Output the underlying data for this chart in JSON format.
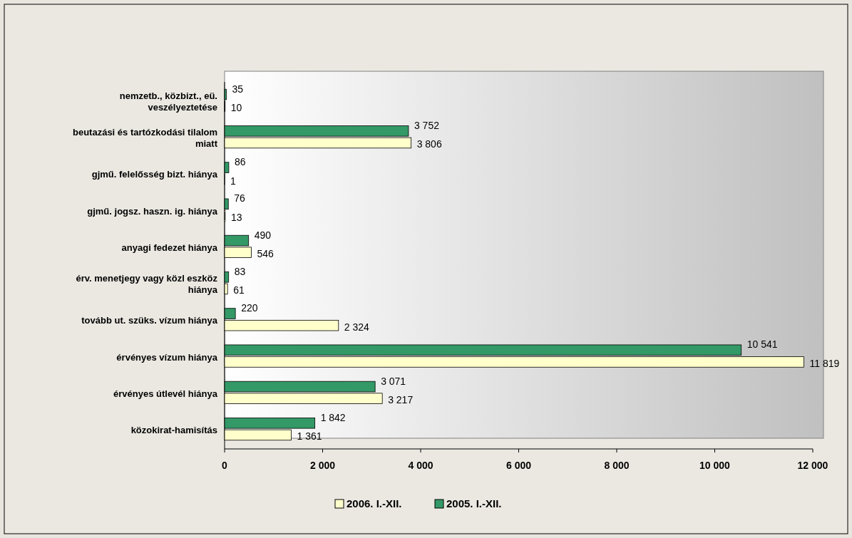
{
  "chart_data": {
    "type": "bar",
    "orientation": "horizontal",
    "categories": [
      "nemzetb., közbizt., eü. veszélyeztetése",
      "beutazási és tartózkodási tilalom miatt",
      "gjmű. felelősség bizt. hiánya",
      "gjmű. jogsz. haszn. ig. hiánya",
      "anyagi fedezet hiánya",
      "érv. menetjegy vagy közl eszköz hiánya",
      "tovább ut. szüks. vízum hiánya",
      "érvényes vízum hiánya",
      "érvényes útlevél hiánya",
      "közokirat-hamisítás"
    ],
    "series": [
      {
        "name": "2006. I.-XII.",
        "color": "#ffffcc",
        "values": [
          10,
          3806,
          1,
          13,
          546,
          61,
          2324,
          11819,
          3217,
          1361
        ],
        "value_labels": [
          "10",
          "3 806",
          "1",
          "13",
          "546",
          "61",
          "2 324",
          "11 819",
          "3 217",
          "1 361"
        ]
      },
      {
        "name": "2005. I.-XII.",
        "color": "#339966",
        "values": [
          35,
          3752,
          86,
          76,
          490,
          83,
          220,
          10541,
          3071,
          1842
        ],
        "value_labels": [
          "35",
          "3 752",
          "86",
          "76",
          "490",
          "83",
          "220",
          "10 541",
          "3 071",
          "1 842"
        ]
      }
    ],
    "xlim": [
      0,
      12000
    ],
    "xticks": [
      0,
      {
        "value": 2000,
        "label": "2 000"
      },
      {
        "value": 4000,
        "label": "4 000"
      },
      {
        "value": 6000,
        "label": "6 000"
      },
      {
        "value": 8000,
        "label": "8 000"
      },
      {
        "value": 10000,
        "label": "10 000"
      },
      {
        "value": 12000,
        "label": "12 000"
      }
    ],
    "legend": "bottom"
  }
}
